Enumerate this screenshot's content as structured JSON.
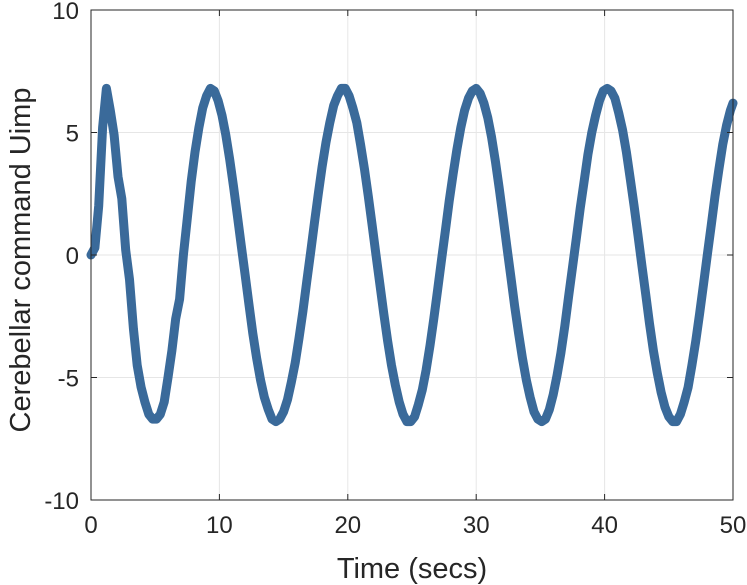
{
  "chart_data": {
    "type": "line",
    "title": "",
    "xlabel": "Time (secs)",
    "ylabel": "Cerebellar command Uimp",
    "xlim": [
      0,
      50
    ],
    "ylim": [
      -10,
      10
    ],
    "xticks": [
      0,
      10,
      20,
      30,
      40,
      50
    ],
    "yticks": [
      -10,
      -5,
      0,
      5,
      10
    ],
    "xtick_labels": [
      "0",
      "10",
      "20",
      "30",
      "40",
      "50"
    ],
    "ytick_labels": [
      "-10",
      "-5",
      "0",
      "5",
      "10"
    ],
    "grid": true,
    "line_color": "#3a6a9a",
    "series": [
      {
        "name": "",
        "x": [
          0,
          0.3,
          0.6,
          0.9,
          1.2,
          1.5,
          1.8,
          2.1,
          2.4,
          2.7,
          3.0,
          3.3,
          3.6,
          3.9,
          4.2,
          4.5,
          4.8,
          5.1,
          5.4,
          5.7,
          6.0,
          6.3,
          6.6,
          6.9,
          7.2,
          7.5,
          7.8,
          8.1,
          8.4,
          8.7,
          9.0,
          9.3,
          9.6,
          9.9,
          10.2,
          10.5,
          10.8,
          11.1,
          11.4,
          11.7,
          12.0,
          12.3,
          12.6,
          12.9,
          13.2,
          13.5,
          13.8,
          14.1,
          14.4,
          14.7,
          15.0,
          15.3,
          15.6,
          15.9,
          16.2,
          16.5,
          16.8,
          17.1,
          17.4,
          17.7,
          18.0,
          18.3,
          18.6,
          18.9,
          19.2,
          19.5,
          19.8,
          20.1,
          20.4,
          20.7,
          21.0,
          21.3,
          21.6,
          21.9,
          22.2,
          22.5,
          22.8,
          23.1,
          23.4,
          23.7,
          24.0,
          24.3,
          24.6,
          24.9,
          25.2,
          25.5,
          25.8,
          26.1,
          26.4,
          26.7,
          27.0,
          27.3,
          27.6,
          27.9,
          28.2,
          28.5,
          28.8,
          29.1,
          29.4,
          29.7,
          30.0,
          30.3,
          30.6,
          30.9,
          31.2,
          31.5,
          31.8,
          32.1,
          32.4,
          32.7,
          33.0,
          33.3,
          33.6,
          33.9,
          34.2,
          34.5,
          34.8,
          35.1,
          35.4,
          35.7,
          36.0,
          36.3,
          36.6,
          36.9,
          37.2,
          37.5,
          37.8,
          38.1,
          38.4,
          38.7,
          39.0,
          39.3,
          39.6,
          39.9,
          40.2,
          40.5,
          40.8,
          41.1,
          41.4,
          41.7,
          42.0,
          42.3,
          42.6,
          42.9,
          43.2,
          43.5,
          43.8,
          44.1,
          44.4,
          44.7,
          45.0,
          45.3,
          45.6,
          45.9,
          46.2,
          46.5,
          46.8,
          47.1,
          47.4,
          47.7,
          48.0,
          48.3,
          48.6,
          48.9,
          49.2,
          49.5,
          49.8,
          50.0
        ],
        "y": [
          0,
          0.3,
          2.0,
          5.2,
          6.8,
          5.9,
          4.9,
          3.2,
          2.3,
          0.2,
          -1.0,
          -3.0,
          -4.5,
          -5.4,
          -6.0,
          -6.5,
          -6.7,
          -6.7,
          -6.5,
          -6.0,
          -5.0,
          -3.9,
          -2.6,
          -1.8,
          0.0,
          1.5,
          3.0,
          4.2,
          5.2,
          6.0,
          6.5,
          6.8,
          6.7,
          6.3,
          5.7,
          4.9,
          3.9,
          2.8,
          1.6,
          0.4,
          -0.8,
          -2.0,
          -3.2,
          -4.2,
          -5.1,
          -5.8,
          -6.3,
          -6.7,
          -6.8,
          -6.7,
          -6.4,
          -5.9,
          -5.2,
          -4.4,
          -3.4,
          -2.3,
          -1.1,
          0.1,
          1.3,
          2.5,
          3.6,
          4.6,
          5.4,
          6.1,
          6.5,
          6.8,
          6.8,
          6.5,
          6.0,
          5.4,
          4.5,
          3.5,
          2.4,
          1.2,
          0.0,
          -1.2,
          -2.4,
          -3.5,
          -4.5,
          -5.3,
          -6.0,
          -6.5,
          -6.8,
          -6.8,
          -6.6,
          -6.1,
          -5.5,
          -4.7,
          -3.7,
          -2.6,
          -1.4,
          -0.2,
          1.0,
          2.2,
          3.3,
          4.3,
          5.2,
          5.9,
          6.4,
          6.7,
          6.8,
          6.6,
          6.2,
          5.6,
          4.8,
          3.8,
          2.7,
          1.5,
          0.3,
          -0.9,
          -2.1,
          -3.2,
          -4.2,
          -5.1,
          -5.8,
          -6.4,
          -6.7,
          -6.8,
          -6.7,
          -6.3,
          -5.7,
          -4.9,
          -4.0,
          -2.9,
          -1.7,
          -0.5,
          0.7,
          1.9,
          3.0,
          4.1,
          5.0,
          5.7,
          6.3,
          6.7,
          6.8,
          6.7,
          6.4,
          5.8,
          5.1,
          4.2,
          3.1,
          2.0,
          0.8,
          -0.4,
          -1.6,
          -2.8,
          -3.9,
          -4.8,
          -5.6,
          -6.2,
          -6.6,
          -6.8,
          -6.8,
          -6.5,
          -6.0,
          -5.4,
          -4.5,
          -3.5,
          -2.4,
          -1.2,
          0.0,
          1.2,
          2.4,
          3.5,
          4.5,
          5.3,
          5.9,
          6.2
        ]
      }
    ]
  }
}
